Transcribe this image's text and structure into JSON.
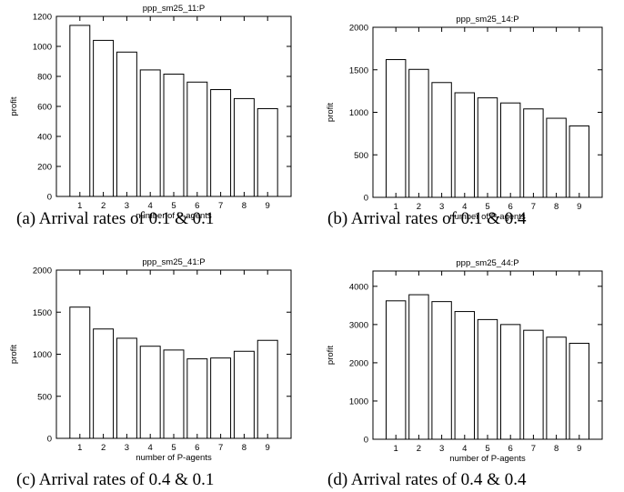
{
  "chart_data": [
    {
      "type": "bar",
      "title": "ppp_sm25_11:P",
      "xlabel": "number of P-agents",
      "ylabel": "profit",
      "categories": [
        "1",
        "2",
        "3",
        "4",
        "5",
        "6",
        "7",
        "8",
        "9"
      ],
      "values": [
        1140,
        1040,
        962,
        843,
        815,
        762,
        712,
        652,
        585
      ],
      "ylim": [
        0,
        1200
      ],
      "yticks": [
        0,
        200,
        400,
        600,
        800,
        1000,
        1200
      ],
      "grid": false,
      "caption": "(a) Arrival rates of 0.1 & 0.1"
    },
    {
      "type": "bar",
      "title": "ppp_sm25_14:P",
      "xlabel": "number of P-agents",
      "ylabel": "profit",
      "categories": [
        "1",
        "2",
        "3",
        "4",
        "5",
        "6",
        "7",
        "8",
        "9"
      ],
      "values": [
        1620,
        1505,
        1350,
        1230,
        1170,
        1110,
        1040,
        930,
        840
      ],
      "ylim": [
        0,
        2000
      ],
      "yticks": [
        0,
        500,
        1000,
        1500,
        2000
      ],
      "grid": false,
      "caption": "(b) Arrival rates of 0.1 & 0.4"
    },
    {
      "type": "bar",
      "title": "ppp_sm25_41:P",
      "xlabel": "number of P-agents",
      "ylabel": "profit",
      "categories": [
        "1",
        "2",
        "3",
        "4",
        "5",
        "6",
        "7",
        "8",
        "9"
      ],
      "values": [
        1560,
        1300,
        1190,
        1095,
        1050,
        945,
        955,
        1035,
        1165
      ],
      "ylim": [
        0,
        2000
      ],
      "yticks": [
        0,
        500,
        1000,
        1500,
        2000
      ],
      "grid": false,
      "caption": "(c) Arrival rates of 0.4 & 0.1"
    },
    {
      "type": "bar",
      "title": "ppp_sm25_44:P",
      "xlabel": "number of P-agents",
      "ylabel": "profit",
      "categories": [
        "1",
        "2",
        "3",
        "4",
        "5",
        "6",
        "7",
        "8",
        "9"
      ],
      "values": [
        3620,
        3780,
        3600,
        3340,
        3130,
        3000,
        2850,
        2670,
        2510
      ],
      "ylim": [
        0,
        4400
      ],
      "yticks": [
        0,
        1000,
        2000,
        3000,
        4000
      ],
      "grid": false,
      "caption": "(d) Arrival rates of 0.4 & 0.4"
    }
  ]
}
